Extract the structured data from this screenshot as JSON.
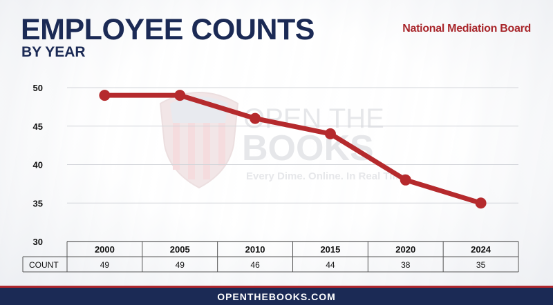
{
  "header": {
    "title": "EMPLOYEE COUNTS",
    "subtitle": "BY YEAR",
    "agency": "National Mediation Board"
  },
  "watermark": {
    "line1": "OPEN THE",
    "line2": "BOOKS",
    "tagline": "Every Dime. Online. In Real Time.",
    "icon": "shield-flag-icon"
  },
  "footer": {
    "text": "OPENTHEBOOKS.COM"
  },
  "colors": {
    "line": "#b52a2d",
    "title": "#1b2a55",
    "agency": "#a8262b",
    "footer_bg": "#1b2a55",
    "footer_border": "#b0262c"
  },
  "chart_data": {
    "type": "line",
    "categories": [
      "2000",
      "2005",
      "2010",
      "2015",
      "2020",
      "2024"
    ],
    "series": [
      {
        "values": [
          49,
          49,
          46,
          44,
          38,
          35
        ]
      }
    ],
    "yticks": [
      "50",
      "45",
      "40",
      "35",
      "30"
    ],
    "ylim": [
      30,
      50
    ],
    "grid": true,
    "table": {
      "row_label": "COUNT",
      "values": [
        "49",
        "49",
        "46",
        "44",
        "38",
        "35"
      ]
    }
  }
}
